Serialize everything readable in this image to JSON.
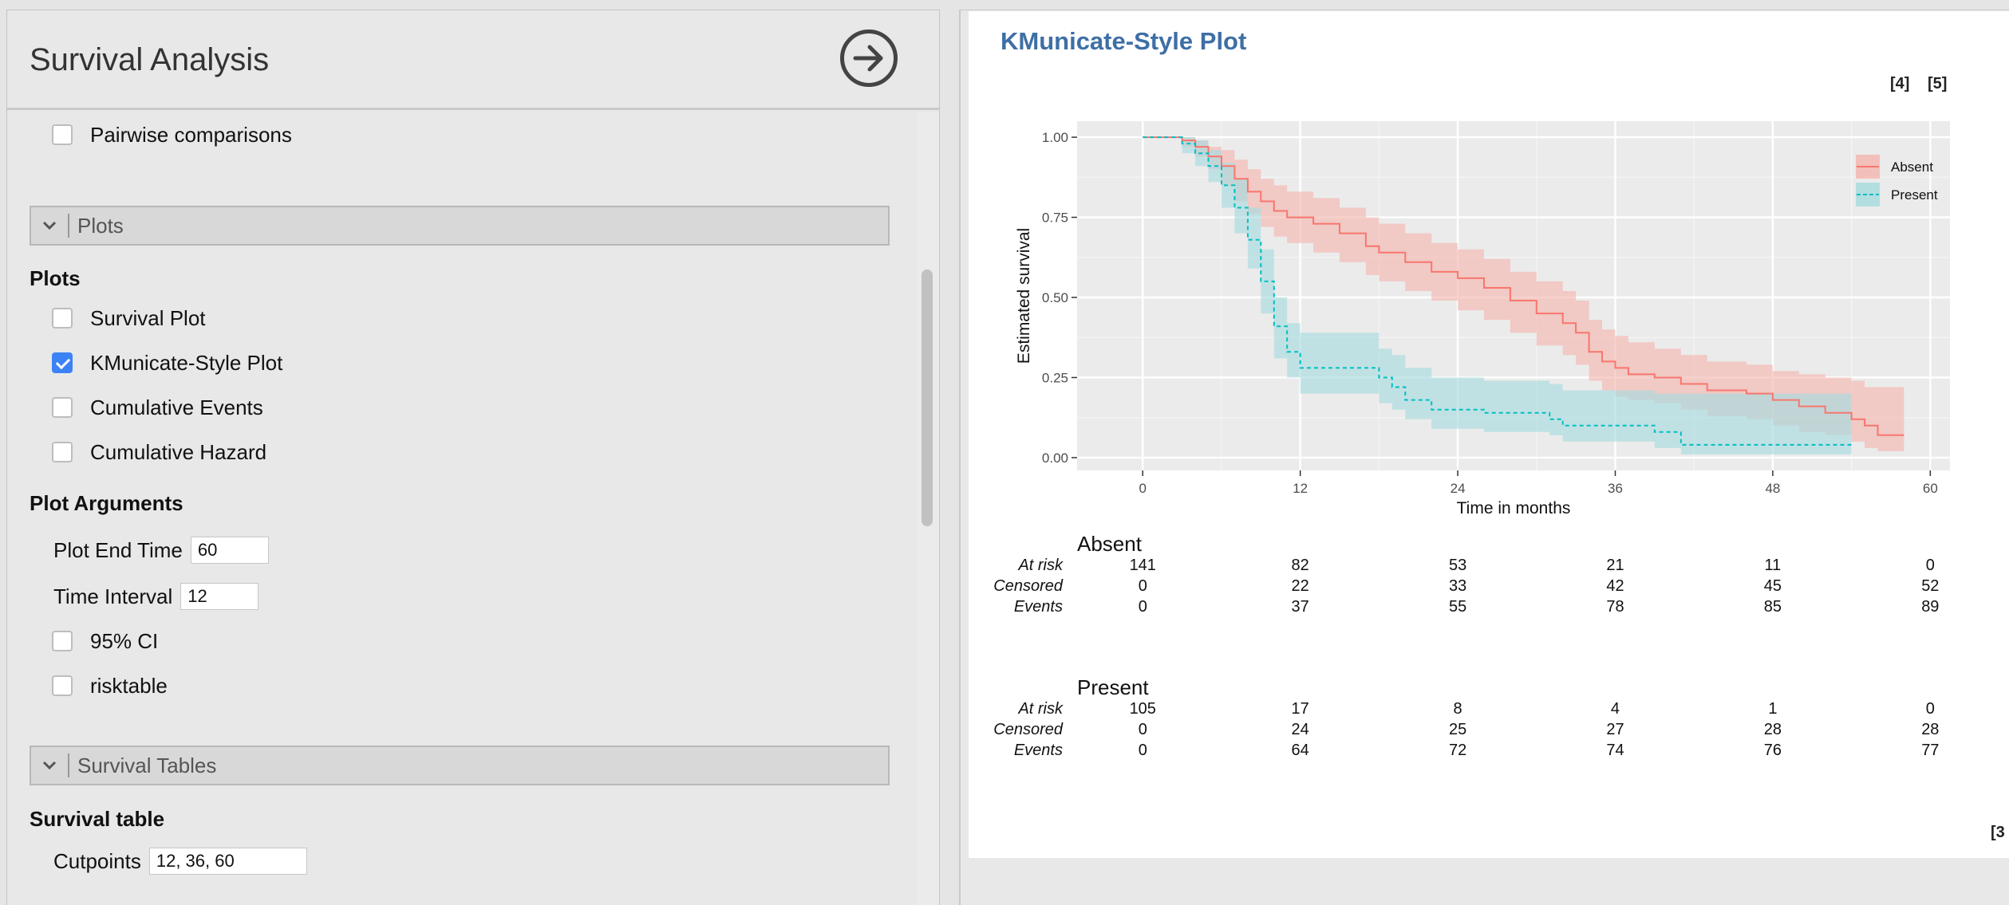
{
  "left": {
    "title": "Survival Analysis",
    "pairwise_label": "Pairwise comparisons",
    "plots_section": "Plots",
    "plots_heading": "Plots",
    "plot_options": [
      {
        "label": "Survival Plot",
        "checked": false
      },
      {
        "label": "KMunicate-Style Plot",
        "checked": true
      },
      {
        "label": "Cumulative Events",
        "checked": false
      },
      {
        "label": "Cumulative Hazard",
        "checked": false
      }
    ],
    "plot_args_heading": "Plot Arguments",
    "plot_end_time_label": "Plot End Time",
    "plot_end_time_value": "60",
    "time_interval_label": "Time Interval",
    "time_interval_value": "12",
    "ci_label": "95% CI",
    "risktable_label": "risktable",
    "survival_tables_section": "Survival Tables",
    "survival_table_heading": "Survival table",
    "cutpoints_label": "Cutpoints",
    "cutpoints_value": "12, 36, 60"
  },
  "right": {
    "title": "KMunicate-Style Plot",
    "refs": [
      "[4]",
      "[5]",
      "[3"
    ]
  },
  "chart_data": {
    "type": "line",
    "title": "",
    "xlabel": "Time in months",
    "ylabel": "Estimated survival",
    "xlim": [
      -5,
      61.5
    ],
    "ylim": [
      -0.04,
      1.05
    ],
    "x_ticks": [
      0,
      12,
      24,
      36,
      48,
      60
    ],
    "y_ticks": [
      0,
      0.25,
      0.5,
      0.75,
      1
    ],
    "y_tick_labels": [
      "0.00",
      "0.25",
      "0.50",
      "0.75",
      "1.00"
    ],
    "grid": true,
    "legend_position": "top-right",
    "series": [
      {
        "name": "Absent",
        "color": "#f8766d",
        "band_color": "#f4b7b1",
        "line": "solid",
        "steps": [
          [
            0,
            1.0
          ],
          [
            3,
            0.99
          ],
          [
            4,
            0.97
          ],
          [
            5,
            0.94
          ],
          [
            6,
            0.91
          ],
          [
            7,
            0.87
          ],
          [
            8,
            0.83
          ],
          [
            9,
            0.8
          ],
          [
            10,
            0.77
          ],
          [
            11,
            0.75
          ],
          [
            13,
            0.73
          ],
          [
            15,
            0.7
          ],
          [
            17,
            0.66
          ],
          [
            18,
            0.64
          ],
          [
            20,
            0.61
          ],
          [
            22,
            0.58
          ],
          [
            24,
            0.56
          ],
          [
            26,
            0.53
          ],
          [
            28,
            0.49
          ],
          [
            30,
            0.45
          ],
          [
            32,
            0.42
          ],
          [
            33,
            0.39
          ],
          [
            34,
            0.33
          ],
          [
            35,
            0.3
          ],
          [
            36,
            0.28
          ],
          [
            37,
            0.26
          ],
          [
            39,
            0.25
          ],
          [
            41,
            0.23
          ],
          [
            43,
            0.21
          ],
          [
            46,
            0.2
          ],
          [
            48,
            0.18
          ],
          [
            50,
            0.16
          ],
          [
            52,
            0.14
          ],
          [
            54,
            0.12
          ],
          [
            55,
            0.1
          ],
          [
            56,
            0.07
          ],
          [
            58,
            0.07
          ]
        ],
        "ci_lower": [
          [
            0,
            1.0
          ],
          [
            3,
            0.97
          ],
          [
            4,
            0.94
          ],
          [
            5,
            0.9
          ],
          [
            6,
            0.85
          ],
          [
            7,
            0.8
          ],
          [
            8,
            0.76
          ],
          [
            9,
            0.72
          ],
          [
            10,
            0.69
          ],
          [
            11,
            0.67
          ],
          [
            13,
            0.64
          ],
          [
            15,
            0.61
          ],
          [
            17,
            0.57
          ],
          [
            18,
            0.55
          ],
          [
            20,
            0.52
          ],
          [
            22,
            0.49
          ],
          [
            24,
            0.46
          ],
          [
            26,
            0.43
          ],
          [
            28,
            0.39
          ],
          [
            30,
            0.35
          ],
          [
            32,
            0.32
          ],
          [
            33,
            0.29
          ],
          [
            34,
            0.24
          ],
          [
            35,
            0.21
          ],
          [
            36,
            0.19
          ],
          [
            37,
            0.18
          ],
          [
            39,
            0.17
          ],
          [
            41,
            0.15
          ],
          [
            43,
            0.13
          ],
          [
            46,
            0.12
          ],
          [
            48,
            0.1
          ],
          [
            50,
            0.08
          ],
          [
            52,
            0.07
          ],
          [
            54,
            0.05
          ],
          [
            55,
            0.03
          ],
          [
            56,
            0.02
          ],
          [
            58,
            0.02
          ]
        ],
        "ci_upper": [
          [
            0,
            1.0
          ],
          [
            3,
            1.0
          ],
          [
            4,
            0.99
          ],
          [
            5,
            0.97
          ],
          [
            6,
            0.96
          ],
          [
            7,
            0.93
          ],
          [
            8,
            0.9
          ],
          [
            9,
            0.87
          ],
          [
            10,
            0.85
          ],
          [
            11,
            0.83
          ],
          [
            13,
            0.81
          ],
          [
            15,
            0.78
          ],
          [
            17,
            0.75
          ],
          [
            18,
            0.73
          ],
          [
            20,
            0.7
          ],
          [
            22,
            0.67
          ],
          [
            24,
            0.65
          ],
          [
            26,
            0.62
          ],
          [
            28,
            0.58
          ],
          [
            30,
            0.55
          ],
          [
            32,
            0.52
          ],
          [
            33,
            0.49
          ],
          [
            34,
            0.43
          ],
          [
            35,
            0.4
          ],
          [
            36,
            0.38
          ],
          [
            37,
            0.36
          ],
          [
            39,
            0.34
          ],
          [
            41,
            0.32
          ],
          [
            43,
            0.3
          ],
          [
            46,
            0.29
          ],
          [
            48,
            0.27
          ],
          [
            50,
            0.26
          ],
          [
            52,
            0.25
          ],
          [
            54,
            0.24
          ],
          [
            55,
            0.22
          ],
          [
            56,
            0.22
          ],
          [
            58,
            0.22
          ]
        ]
      },
      {
        "name": "Present",
        "color": "#00bfc4",
        "band_color": "#a9dcde",
        "line": "dashed",
        "steps": [
          [
            0,
            1.0
          ],
          [
            3,
            0.98
          ],
          [
            4,
            0.95
          ],
          [
            5,
            0.91
          ],
          [
            6,
            0.85
          ],
          [
            7,
            0.78
          ],
          [
            8,
            0.68
          ],
          [
            9,
            0.55
          ],
          [
            10,
            0.41
          ],
          [
            11,
            0.33
          ],
          [
            12,
            0.28
          ],
          [
            18,
            0.25
          ],
          [
            19,
            0.22
          ],
          [
            20,
            0.18
          ],
          [
            22,
            0.15
          ],
          [
            26,
            0.14
          ],
          [
            31,
            0.12
          ],
          [
            32,
            0.1
          ],
          [
            39,
            0.08
          ],
          [
            41,
            0.04
          ],
          [
            54,
            0.04
          ]
        ],
        "ci_lower": [
          [
            0,
            1.0
          ],
          [
            3,
            0.95
          ],
          [
            4,
            0.91
          ],
          [
            5,
            0.86
          ],
          [
            6,
            0.78
          ],
          [
            7,
            0.7
          ],
          [
            8,
            0.59
          ],
          [
            9,
            0.45
          ],
          [
            10,
            0.31
          ],
          [
            11,
            0.25
          ],
          [
            12,
            0.2
          ],
          [
            18,
            0.17
          ],
          [
            19,
            0.15
          ],
          [
            20,
            0.12
          ],
          [
            22,
            0.09
          ],
          [
            26,
            0.08
          ],
          [
            31,
            0.07
          ],
          [
            32,
            0.05
          ],
          [
            39,
            0.03
          ],
          [
            41,
            0.01
          ],
          [
            54,
            0.01
          ]
        ],
        "ci_upper": [
          [
            0,
            1.0
          ],
          [
            3,
            1.0
          ],
          [
            4,
            0.99
          ],
          [
            5,
            0.96
          ],
          [
            6,
            0.92
          ],
          [
            7,
            0.87
          ],
          [
            8,
            0.78
          ],
          [
            9,
            0.65
          ],
          [
            10,
            0.5
          ],
          [
            11,
            0.42
          ],
          [
            12,
            0.39
          ],
          [
            18,
            0.34
          ],
          [
            19,
            0.32
          ],
          [
            20,
            0.28
          ],
          [
            22,
            0.25
          ],
          [
            26,
            0.24
          ],
          [
            31,
            0.23
          ],
          [
            32,
            0.21
          ],
          [
            39,
            0.2
          ],
          [
            41,
            0.2
          ],
          [
            54,
            0.2
          ]
        ]
      }
    ],
    "risk_table": {
      "row_labels": [
        "At risk",
        "Censored",
        "Events"
      ],
      "groups": [
        {
          "name": "Absent",
          "at_risk": [
            141,
            82,
            53,
            21,
            11,
            0
          ],
          "censored": [
            0,
            22,
            33,
            42,
            45,
            52
          ],
          "events": [
            0,
            37,
            55,
            78,
            85,
            89
          ]
        },
        {
          "name": "Present",
          "at_risk": [
            105,
            17,
            8,
            4,
            1,
            0
          ],
          "censored": [
            0,
            24,
            25,
            27,
            28,
            28
          ],
          "events": [
            0,
            64,
            72,
            74,
            76,
            77
          ]
        }
      ]
    }
  }
}
